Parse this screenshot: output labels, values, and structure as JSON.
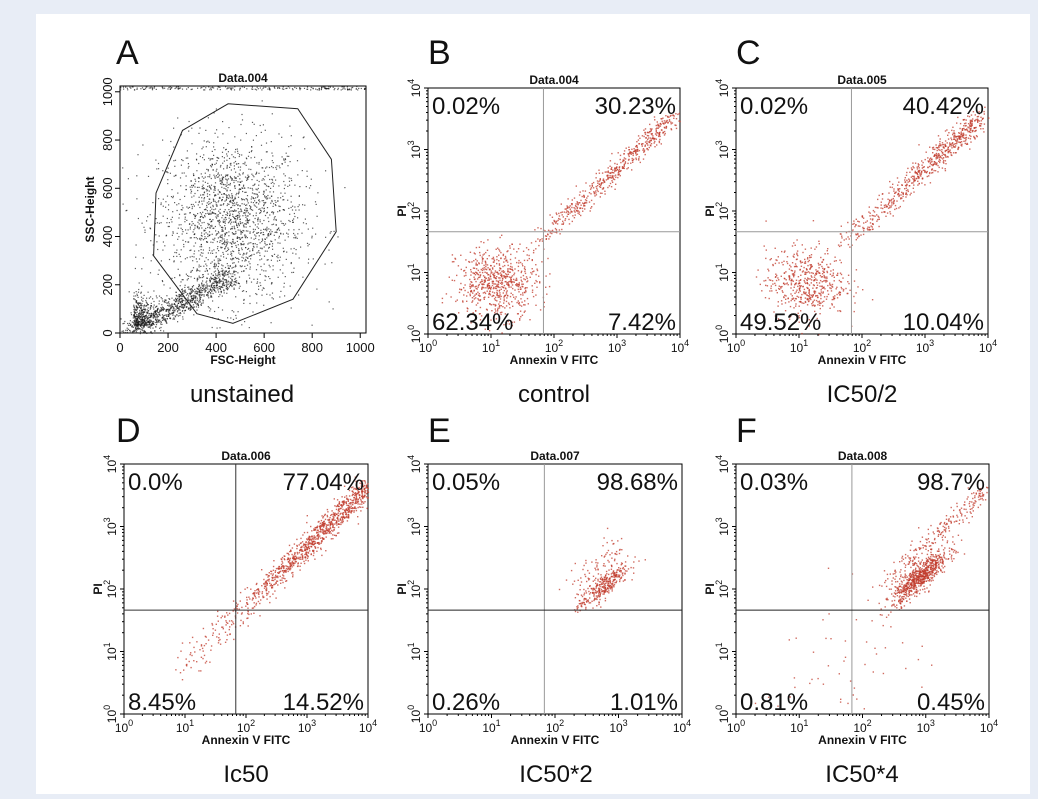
{
  "chart_data": [
    {
      "type": "scatter",
      "panel": "A",
      "title": "Data.004",
      "xlabel": "FSC-Height",
      "ylabel": "SSC-Height",
      "xlim": [
        0,
        1024
      ],
      "ylim": [
        0,
        1024
      ],
      "xticks": [
        "0",
        "200",
        "400",
        "600",
        "800",
        "1000"
      ],
      "yticks": [
        "0",
        "200",
        "400",
        "600",
        "800",
        "1000"
      ],
      "caption": "unstained",
      "gate_polygon": [
        [
          150,
          580
        ],
        [
          260,
          840
        ],
        [
          450,
          950
        ],
        [
          740,
          930
        ],
        [
          880,
          720
        ],
        [
          900,
          420
        ],
        [
          720,
          140
        ],
        [
          470,
          40
        ],
        [
          320,
          80
        ],
        [
          140,
          320
        ]
      ]
    },
    {
      "type": "scatter",
      "scale": "log",
      "panel": "B",
      "title": "Data.004",
      "xlabel": "Annexin V FITC",
      "ylabel": "PI",
      "caption": "control",
      "quadrant_split": {
        "x": 68,
        "y": 46
      },
      "quadrants": {
        "upper_left": "0.02%",
        "upper_right": "30.23%",
        "lower_left": "62.34%",
        "lower_right": "7.42%"
      }
    },
    {
      "type": "scatter",
      "scale": "log",
      "panel": "C",
      "title": "Data.005",
      "xlabel": "Annexin V FITC",
      "ylabel": "PI",
      "caption": "IC50/2",
      "quadrant_split": {
        "x": 68,
        "y": 46
      },
      "quadrants": {
        "upper_left": "0.02%",
        "upper_right": "40.42%",
        "lower_left": "49.52%",
        "lower_right": "10.04%"
      }
    },
    {
      "type": "scatter",
      "scale": "log",
      "panel": "D",
      "title": "Data.006",
      "xlabel": "Annexin V FITC",
      "ylabel": "PI",
      "caption": "Ic50",
      "quadrant_split": {
        "x": 68,
        "y": 46
      },
      "quadrants": {
        "upper_left": "0.0%",
        "upper_right": "77.04%",
        "lower_left": "8.45%",
        "lower_right": "14.52%"
      }
    },
    {
      "type": "scatter",
      "scale": "log",
      "panel": "E",
      "title": "Data.007",
      "xlabel": "Annexin V FITC",
      "ylabel": "PI",
      "caption": "IC50*2",
      "quadrant_split": {
        "x": 68,
        "y": 46
      },
      "quadrants": {
        "upper_left": "0.05%",
        "upper_right": "98.68%",
        "lower_left": "0.26%",
        "lower_right": "1.01%"
      }
    },
    {
      "type": "scatter",
      "scale": "log",
      "panel": "F",
      "title": "Data.008",
      "xlabel": "Annexin V FITC",
      "ylabel": "PI",
      "caption": "IC50*4",
      "quadrant_split": {
        "x": 68,
        "y": 46
      },
      "quadrants": {
        "upper_left": "0.03%",
        "upper_right": "98.7%",
        "lower_left": "0.81%",
        "lower_right": "0.45%"
      }
    }
  ],
  "log_axis": {
    "xlim": [
      1,
      10000
    ],
    "ylim": [
      1,
      10000
    ],
    "tick_base": "10",
    "tick_exponents": [
      "0",
      "1",
      "2",
      "3",
      "4"
    ]
  },
  "colors": {
    "background": "#e8edf6",
    "dots_scatter": "#1a1a1a",
    "dots_apoptosis": "#c0392b",
    "quadrant_line": "#999999"
  }
}
